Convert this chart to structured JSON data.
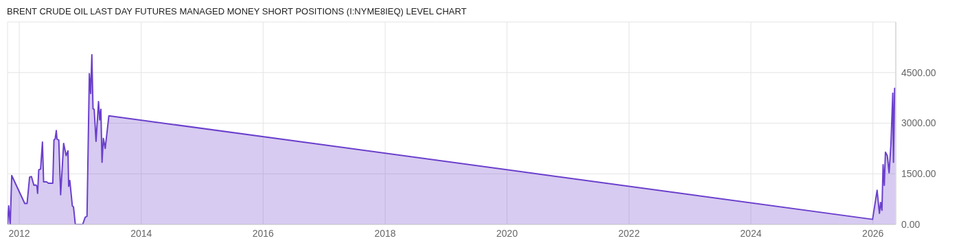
{
  "chart_data": {
    "type": "area",
    "title": "BRENT CRUDE OIL LAST DAY FUTURES MANAGED MONEY SHORT POSITIONS (I:NYME8IEQ) LEVEL CHART",
    "x": [
      "2011-10-23",
      "2011-10-30",
      "2011-11-08",
      "2011-11-17",
      "2012-02-03",
      "2012-02-17",
      "2012-03-03",
      "2012-03-14",
      "2012-03-29",
      "2012-04-09",
      "2012-04-16",
      "2012-04-20",
      "2012-04-27",
      "2012-05-08",
      "2012-05-19",
      "2012-05-26",
      "2012-06-13",
      "2012-06-24",
      "2012-07-20",
      "2012-07-27",
      "2012-08-03",
      "2012-08-10",
      "2012-08-14",
      "2012-08-25",
      "2012-09-05",
      "2012-09-23",
      "2012-10-08",
      "2012-10-19",
      "2012-10-23",
      "2012-10-30",
      "2012-11-14",
      "2012-11-21",
      "2012-12-02",
      "2013-01-15",
      "2013-01-30",
      "2013-02-10",
      "2013-02-24",
      "2013-03-04",
      "2013-03-11",
      "2013-03-18",
      "2013-03-25",
      "2013-04-05",
      "2013-04-20",
      "2013-04-27",
      "2013-05-04",
      "2013-05-11",
      "2013-05-19",
      "2013-05-30",
      "2013-06-21",
      "2025-12-30",
      "2026-01-26",
      "2026-02-09",
      "2026-02-16",
      "2026-02-24",
      "2026-03-03",
      "2026-03-10",
      "2026-03-17",
      "2026-03-28",
      "2026-04-08",
      "2026-04-19",
      "2026-04-30",
      "2026-05-04",
      "2026-05-11",
      "2026-05-15"
    ],
    "series": [
      {
        "color": "#6a3fcc",
        "values": [
          0,
          550,
          0,
          1450,
          620,
          620,
          1400,
          1420,
          1160,
          1170,
          1130,
          920,
          1620,
          1640,
          2440,
          1260,
          1260,
          1220,
          1220,
          2500,
          2530,
          2780,
          2530,
          2500,
          880,
          2400,
          2040,
          2180,
          1130,
          1300,
          550,
          520,
          0,
          0,
          210,
          240,
          4470,
          3880,
          5030,
          3430,
          3410,
          2460,
          3640,
          3100,
          3410,
          1840,
          2550,
          2250,
          3220,
          150,
          1010,
          330,
          650,
          420,
          1770,
          1160,
          2140,
          2040,
          1530,
          2380,
          3890,
          1840,
          4030,
          4030
        ]
      }
    ],
    "xlim": [
      "2011-10-23",
      "2026-05-18"
    ],
    "xticks": [
      "2012",
      "2014",
      "2016",
      "2018",
      "2020",
      "2022",
      "2024",
      "2026"
    ],
    "ylim": [
      0,
      6000
    ],
    "yticks": [
      {
        "value": 0,
        "label": "0.00"
      },
      {
        "value": 1500,
        "label": "1500.00"
      },
      {
        "value": 3000,
        "label": "3000.00"
      },
      {
        "value": 4500,
        "label": "4500.00"
      }
    ],
    "grid": true
  }
}
